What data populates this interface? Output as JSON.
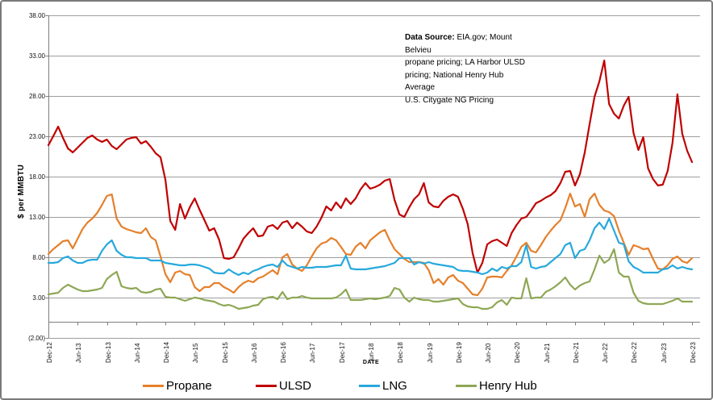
{
  "y_axis_title": "$ per MMBTU",
  "x_axis_title": "DATE",
  "data_source": {
    "label": "Data Source:",
    "line1_rest": "  EIA.gov; Mount Belvieu",
    "line2": "propane pricing;  LA Harbor ULSD",
    "line3": "pricing; National Henry Hub Average",
    "line4": "U.S. Citygate NG Pricing"
  },
  "legend": {
    "items": [
      {
        "label": "Propane"
      },
      {
        "label": "ULSD"
      },
      {
        "label": "LNG"
      },
      {
        "label": "Henry Hub"
      }
    ]
  },
  "chart_data": {
    "type": "line",
    "title": "",
    "ylabel": "$ per MMBTU",
    "xlabel": "DATE",
    "ylim": [
      -2,
      38
    ],
    "grid": true,
    "legend_position": "bottom",
    "x_start": "Dec-12",
    "x_interval_months": 1,
    "y_ticks": [
      {
        "label": "38.00",
        "value": 38
      },
      {
        "label": "33.00",
        "value": 33
      },
      {
        "label": "28.00",
        "value": 28
      },
      {
        "label": "23.00",
        "value": 23
      },
      {
        "label": "18.00",
        "value": 18
      },
      {
        "label": "13.00",
        "value": 13
      },
      {
        "label": "8.00",
        "value": 8
      },
      {
        "label": "3.00",
        "value": 3
      },
      {
        "label": "(2.00)",
        "value": -2
      }
    ],
    "x_ticks": [
      {
        "label": "Dec-12",
        "month_index": 0
      },
      {
        "label": "Jun-13",
        "month_index": 6
      },
      {
        "label": "Dec-13",
        "month_index": 12
      },
      {
        "label": "Jun-14",
        "month_index": 18
      },
      {
        "label": "Dec-14",
        "month_index": 24
      },
      {
        "label": "Jun-15",
        "month_index": 30
      },
      {
        "label": "Dec-15",
        "month_index": 36
      },
      {
        "label": "Jun-16",
        "month_index": 42
      },
      {
        "label": "Dec-16",
        "month_index": 48
      },
      {
        "label": "Jun-17",
        "month_index": 54
      },
      {
        "label": "Dec-17",
        "month_index": 60
      },
      {
        "label": "Jun-18",
        "month_index": 66
      },
      {
        "label": "Dec-18",
        "month_index": 72
      },
      {
        "label": "Jun-19",
        "month_index": 78
      },
      {
        "label": "Dec-19",
        "month_index": 84
      },
      {
        "label": "Jun-20",
        "month_index": 90
      },
      {
        "label": "Dec-20",
        "month_index": 96
      },
      {
        "label": "Jun-21",
        "month_index": 102
      },
      {
        "label": "Dec-21",
        "month_index": 108
      },
      {
        "label": "Jun-22",
        "month_index": 114
      },
      {
        "label": "Dec-22",
        "month_index": 120
      },
      {
        "label": "Jun-23",
        "month_index": 126
      },
      {
        "label": "Dec-23",
        "month_index": 132
      }
    ],
    "axis_color": "#7f7f7f",
    "gridline_color": "#9e9e9e",
    "series": [
      {
        "name": "Propane",
        "color": "#E5802B",
        "values": [
          8.4,
          9.0,
          9.5,
          10.0,
          10.1,
          9.1,
          10.3,
          11.5,
          12.3,
          12.8,
          13.5,
          14.5,
          15.6,
          15.8,
          12.8,
          11.8,
          11.5,
          11.3,
          11.1,
          11.0,
          11.6,
          10.5,
          10.1,
          8.1,
          5.9,
          4.9,
          6.1,
          6.3,
          5.9,
          5.8,
          4.3,
          3.8,
          4.3,
          4.3,
          4.8,
          4.8,
          4.3,
          4.0,
          3.6,
          4.3,
          4.8,
          5.1,
          4.9,
          5.4,
          5.6,
          6.0,
          6.4,
          5.9,
          8.0,
          8.4,
          7.1,
          6.6,
          6.3,
          7.0,
          8.1,
          9.1,
          9.7,
          9.9,
          10.4,
          10.1,
          9.3,
          8.4,
          8.3,
          9.3,
          9.8,
          9.1,
          10.1,
          10.6,
          11.1,
          11.4,
          10.1,
          9.0,
          8.4,
          7.8,
          7.4,
          7.4,
          7.4,
          7.3,
          6.4,
          4.8,
          5.3,
          4.6,
          5.5,
          5.8,
          5.1,
          4.8,
          4.1,
          3.4,
          3.3,
          4.1,
          5.5,
          5.6,
          5.6,
          5.5,
          6.3,
          7.0,
          8.1,
          9.3,
          9.8,
          8.8,
          8.6,
          9.5,
          10.5,
          11.3,
          12.0,
          12.6,
          14.1,
          15.9,
          14.3,
          14.6,
          13.0,
          15.2,
          15.9,
          14.5,
          13.8,
          13.6,
          13.1,
          11.3,
          9.8,
          8.3,
          9.5,
          9.3,
          9.0,
          9.1,
          7.8,
          6.6,
          6.5,
          7.0,
          7.8,
          8.1,
          7.5,
          7.3,
          7.9
        ]
      },
      {
        "name": "ULSD",
        "color": "#C00000",
        "values": [
          21.9,
          23.0,
          24.2,
          22.8,
          21.5,
          21.0,
          21.6,
          22.2,
          22.8,
          23.1,
          22.6,
          22.3,
          22.6,
          21.8,
          21.4,
          22.0,
          22.6,
          22.8,
          22.9,
          22.1,
          22.4,
          21.7,
          20.9,
          20.4,
          17.6,
          12.5,
          11.4,
          14.6,
          12.8,
          14.2,
          15.3,
          13.9,
          12.6,
          11.3,
          11.6,
          10.2,
          7.9,
          7.8,
          8.0,
          9.1,
          10.3,
          11.0,
          11.6,
          10.6,
          10.7,
          11.8,
          12.0,
          11.5,
          12.3,
          12.5,
          11.6,
          12.3,
          11.8,
          11.2,
          11.0,
          11.8,
          12.9,
          14.3,
          13.8,
          14.8,
          14.1,
          15.3,
          14.6,
          15.3,
          16.4,
          17.2,
          16.5,
          16.7,
          17.0,
          17.5,
          17.7,
          15.1,
          13.3,
          13.0,
          14.2,
          15.2,
          15.8,
          17.2,
          14.8,
          14.3,
          14.2,
          15.0,
          15.5,
          15.8,
          15.5,
          14.0,
          12.1,
          8.5,
          6.1,
          7.3,
          9.6,
          10.0,
          10.2,
          9.8,
          9.4,
          11.0,
          12.0,
          12.8,
          13.0,
          13.8,
          14.7,
          15.0,
          15.4,
          15.7,
          16.2,
          17.2,
          18.6,
          18.7,
          16.9,
          18.3,
          21.0,
          24.5,
          27.9,
          29.8,
          32.4,
          27.0,
          25.8,
          25.2,
          26.8,
          27.9,
          23.4,
          21.3,
          22.9,
          19.0,
          17.7,
          16.9,
          17.0,
          18.7,
          22.2,
          28.2,
          23.3,
          21.2,
          19.8
        ]
      },
      {
        "name": "LNG",
        "color": "#27A9DC",
        "values": [
          7.3,
          7.3,
          7.4,
          7.9,
          8.1,
          7.6,
          7.3,
          7.3,
          7.6,
          7.7,
          7.7,
          8.8,
          9.6,
          10.1,
          8.8,
          8.3,
          8.0,
          8.0,
          7.9,
          7.9,
          7.9,
          7.6,
          7.6,
          7.6,
          7.3,
          7.2,
          7.1,
          7.0,
          7.0,
          7.1,
          7.1,
          7.0,
          6.8,
          6.6,
          6.1,
          6.0,
          6.0,
          6.5,
          6.1,
          5.8,
          6.1,
          5.9,
          6.3,
          6.5,
          6.8,
          7.0,
          7.1,
          6.8,
          7.6,
          7.0,
          6.8,
          6.6,
          6.8,
          6.7,
          6.7,
          6.8,
          6.8,
          6.8,
          6.9,
          7.0,
          7.0,
          8.2,
          6.6,
          6.5,
          6.5,
          6.5,
          6.6,
          6.7,
          6.8,
          6.9,
          7.1,
          7.3,
          7.9,
          7.9,
          7.9,
          7.1,
          7.4,
          7.2,
          7.4,
          7.2,
          7.1,
          7.0,
          6.9,
          6.8,
          6.4,
          6.3,
          6.3,
          6.2,
          6.1,
          5.9,
          6.1,
          6.6,
          6.3,
          6.8,
          6.6,
          6.9,
          6.9,
          7.4,
          9.5,
          6.8,
          6.6,
          6.8,
          6.9,
          7.4,
          7.9,
          8.4,
          9.5,
          9.8,
          7.9,
          8.8,
          9.0,
          10.1,
          11.6,
          12.3,
          11.5,
          12.8,
          11.3,
          9.8,
          9.6,
          7.5,
          6.8,
          6.5,
          6.1,
          6.1,
          6.1,
          6.1,
          6.5,
          6.6,
          7.0,
          6.6,
          6.8,
          6.6,
          6.5
        ]
      },
      {
        "name": "Henry Hub",
        "color": "#8EA755",
        "values": [
          3.4,
          3.5,
          3.6,
          4.2,
          4.6,
          4.3,
          4.0,
          3.8,
          3.8,
          3.9,
          4.0,
          4.2,
          5.3,
          5.8,
          6.2,
          4.4,
          4.2,
          4.1,
          4.2,
          3.7,
          3.6,
          3.7,
          4.0,
          4.1,
          3.1,
          3.0,
          3.0,
          2.8,
          2.6,
          2.8,
          3.0,
          2.9,
          2.7,
          2.6,
          2.5,
          2.2,
          2.0,
          2.1,
          1.9,
          1.6,
          1.7,
          1.8,
          2.0,
          2.1,
          2.8,
          3.0,
          3.1,
          2.8,
          3.7,
          2.8,
          3.0,
          3.0,
          3.2,
          3.0,
          2.9,
          2.9,
          2.9,
          2.9,
          2.9,
          3.0,
          3.4,
          4.0,
          2.7,
          2.7,
          2.7,
          2.8,
          2.9,
          2.8,
          2.9,
          3.0,
          3.2,
          4.2,
          4.0,
          3.0,
          2.5,
          3.0,
          2.8,
          2.7,
          2.7,
          2.5,
          2.5,
          2.6,
          2.7,
          2.8,
          2.9,
          2.2,
          1.9,
          1.8,
          1.8,
          1.6,
          1.6,
          1.8,
          2.4,
          2.7,
          2.1,
          3.0,
          2.9,
          2.9,
          5.4,
          2.9,
          3.0,
          3.0,
          3.7,
          4.0,
          4.4,
          4.9,
          5.5,
          4.6,
          4.0,
          4.5,
          4.8,
          5.0,
          6.5,
          8.2,
          7.3,
          7.7,
          9.0,
          6.1,
          5.6,
          5.6,
          3.6,
          2.6,
          2.3,
          2.2,
          2.2,
          2.2,
          2.2,
          2.4,
          2.6,
          2.9,
          2.5,
          2.5,
          2.5
        ]
      }
    ]
  }
}
